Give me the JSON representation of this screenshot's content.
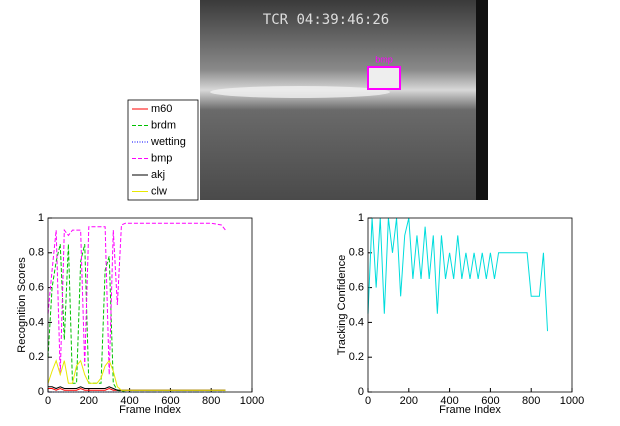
{
  "image": {
    "timestamp": "TCR 04:39:46:26",
    "box_label": "bmp"
  },
  "chart_data": [
    {
      "type": "line",
      "xlabel": "Frame Index",
      "ylabel": "Recognition Scores",
      "x": [
        0,
        20,
        40,
        60,
        80,
        100,
        120,
        140,
        160,
        180,
        200,
        220,
        240,
        260,
        280,
        300,
        320,
        340,
        360,
        380,
        400,
        500,
        600,
        700,
        800,
        850,
        870
      ],
      "series": [
        {
          "name": "m60",
          "color": "#ff0000",
          "dash": "solid",
          "values": [
            0.02,
            0.02,
            0.01,
            0.02,
            0.01,
            0.01,
            0.01,
            0.01,
            0.02,
            0.01,
            0.01,
            0.01,
            0.01,
            0.01,
            0.01,
            0.02,
            0.01,
            0.01,
            0.01,
            0.01,
            0.01,
            0.01,
            0.01,
            0.01,
            0.01,
            0.01,
            0.01
          ]
        },
        {
          "name": "brdm",
          "color": "#00c000",
          "dash": "dashed",
          "values": [
            0.2,
            0.6,
            0.75,
            0.85,
            0.3,
            0.85,
            0.05,
            0.05,
            0.75,
            0.85,
            0.05,
            0.05,
            0.05,
            0.05,
            0.7,
            0.78,
            0.05,
            0.01,
            0.005,
            0,
            0,
            0,
            0,
            0,
            0,
            0,
            0
          ]
        },
        {
          "name": "wetting",
          "color": "#0000ff",
          "dash": "dotted",
          "values": [
            0,
            0,
            0,
            0,
            0,
            0,
            0,
            0,
            0,
            0,
            0,
            0,
            0,
            0,
            0,
            0,
            0,
            0,
            0,
            0,
            0,
            0,
            0,
            0,
            0,
            0,
            0
          ]
        },
        {
          "name": "bmp",
          "color": "#ff00ff",
          "dash": "dashed",
          "values": [
            0.45,
            0.7,
            0.93,
            0.1,
            0.93,
            0.9,
            0.93,
            0.93,
            0.93,
            0.15,
            0.95,
            0.95,
            0.95,
            0.95,
            0.95,
            0.1,
            0.93,
            0.5,
            0.96,
            0.97,
            0.97,
            0.97,
            0.97,
            0.97,
            0.97,
            0.96,
            0.93
          ]
        },
        {
          "name": "akj",
          "color": "#000000",
          "dash": "solid",
          "values": [
            0.03,
            0.03,
            0.02,
            0.03,
            0.02,
            0.02,
            0.02,
            0.02,
            0.03,
            0.02,
            0.02,
            0.02,
            0.02,
            0.02,
            0.02,
            0.03,
            0.02,
            0.01,
            0.01,
            0.01,
            0.01,
            0.01,
            0.01,
            0.01,
            0.01,
            0.01,
            0.01
          ]
        },
        {
          "name": "clw",
          "color": "#e8e800",
          "dash": "solid",
          "values": [
            0.05,
            0.12,
            0.18,
            0.1,
            0.18,
            0.05,
            0.05,
            0.15,
            0.18,
            0.1,
            0.05,
            0.05,
            0.05,
            0.08,
            0.15,
            0.18,
            0.12,
            0.03,
            0.01,
            0.01,
            0.01,
            0.01,
            0.01,
            0.01,
            0.01,
            0.01,
            0.01
          ]
        }
      ],
      "xlim": [
        0,
        1000
      ],
      "xticks": [
        0,
        200,
        400,
        600,
        800,
        1000
      ],
      "ylim": [
        0,
        1
      ],
      "yticks": [
        0,
        0.2,
        0.4,
        0.6,
        0.8,
        1
      ],
      "legend": "outside"
    },
    {
      "type": "line",
      "xlabel": "Frame Index",
      "ylabel": "Tracking Confidence",
      "x": [
        0,
        20,
        40,
        60,
        80,
        100,
        120,
        140,
        160,
        180,
        200,
        220,
        240,
        260,
        280,
        300,
        320,
        340,
        360,
        380,
        400,
        420,
        440,
        460,
        480,
        500,
        520,
        540,
        560,
        580,
        600,
        620,
        640,
        660,
        680,
        700,
        720,
        740,
        760,
        780,
        800,
        820,
        840,
        860,
        880
      ],
      "series": [
        {
          "color": "#00dddd",
          "dash": "solid",
          "values": [
            0.45,
            1,
            0.6,
            1,
            0.45,
            1,
            0.8,
            1,
            0.55,
            0.9,
            1,
            0.65,
            0.9,
            0.65,
            0.95,
            0.65,
            0.9,
            0.45,
            0.9,
            0.65,
            0.8,
            0.65,
            0.9,
            0.65,
            0.8,
            0.65,
            0.8,
            0.65,
            0.8,
            0.65,
            0.8,
            0.65,
            0.8,
            0.8,
            0.8,
            0.8,
            0.8,
            0.8,
            0.8,
            0.8,
            0.55,
            0.55,
            0.55,
            0.8,
            0.35
          ]
        }
      ],
      "xlim": [
        0,
        1000
      ],
      "xticks": [
        0,
        200,
        400,
        600,
        800,
        1000
      ],
      "ylim": [
        0,
        1
      ],
      "yticks": [
        0,
        0.2,
        0.4,
        0.6,
        0.8,
        1
      ]
    }
  ]
}
